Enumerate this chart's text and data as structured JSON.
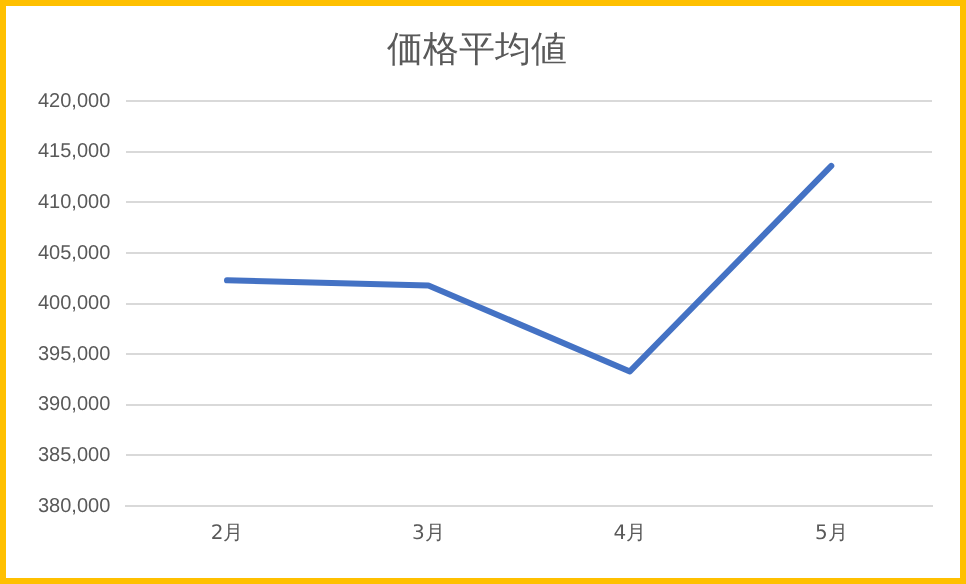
{
  "chart_data": {
    "type": "line",
    "title": "価格平均値",
    "categories": [
      "2月",
      "3月",
      "4月",
      "5月"
    ],
    "series": [
      {
        "color": "#4472c4",
        "values": [
          402300,
          401800,
          393300,
          413600
        ]
      }
    ],
    "ylim": [
      380000,
      420000
    ],
    "yticks": [
      {
        "value": 380000,
        "label": "380,000"
      },
      {
        "value": 385000,
        "label": "385,000"
      },
      {
        "value": 390000,
        "label": "390,000"
      },
      {
        "value": 395000,
        "label": "395,000"
      },
      {
        "value": 400000,
        "label": "400,000"
      },
      {
        "value": 405000,
        "label": "405,000"
      },
      {
        "value": 410000,
        "label": "410,000"
      },
      {
        "value": 415000,
        "label": "415,000"
      },
      {
        "value": 420000,
        "label": "420,000"
      }
    ],
    "grid": "y",
    "legend": false,
    "marker": "none",
    "line_style": "solid"
  }
}
